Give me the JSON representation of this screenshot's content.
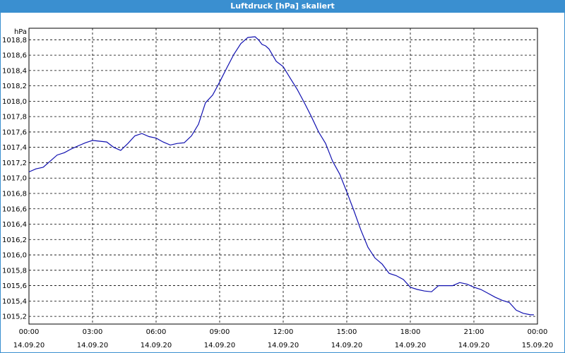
{
  "window": {
    "title": "Luftdruck [hPa] skaliert"
  },
  "chart_data": {
    "type": "line",
    "title": "Luftdruck [hPa] skaliert",
    "ylabel": "hPa",
    "xlabel": "",
    "ylim": [
      1015.1,
      1018.95
    ],
    "xlim": [
      0,
      24
    ],
    "grid": true,
    "line_color": "#1010b0",
    "y_ticks": [
      "1015,2",
      "1015,4",
      "1015,6",
      "1015,8",
      "1016,0",
      "1016,2",
      "1016,4",
      "1016,6",
      "1016,8",
      "1017,0",
      "1017,2",
      "1017,4",
      "1017,6",
      "1017,8",
      "1018,0",
      "1018,2",
      "1018,4",
      "1018,6",
      "1018,8"
    ],
    "x_ticks": [
      {
        "time": "00:00",
        "date": "14.09.20"
      },
      {
        "time": "03:00",
        "date": "14.09.20"
      },
      {
        "time": "06:00",
        "date": "14.09.20"
      },
      {
        "time": "09:00",
        "date": "14.09.20"
      },
      {
        "time": "12:00",
        "date": "14.09.20"
      },
      {
        "time": "15:00",
        "date": "14.09.20"
      },
      {
        "time": "18:00",
        "date": "14.09.20"
      },
      {
        "time": "21:00",
        "date": "14.09.20"
      },
      {
        "time": "00:00",
        "date": "15.09.20"
      }
    ],
    "series": [
      {
        "x": [
          0,
          0.33,
          0.67,
          1.0,
          1.33,
          1.67,
          2.0,
          2.33,
          2.67,
          3.0,
          3.33,
          3.67,
          4.0,
          4.33,
          4.67,
          5.0,
          5.33,
          5.67,
          6.0,
          6.33,
          6.67,
          7.0,
          7.33,
          7.67,
          8.0,
          8.33,
          8.67,
          9.0,
          9.33,
          9.67,
          10.0,
          10.33,
          10.67,
          10.83,
          11.0,
          11.17,
          11.33,
          11.67,
          12.0,
          12.33,
          12.67,
          13.0,
          13.33,
          13.67,
          14.0,
          14.33,
          14.67,
          15.0,
          15.33,
          15.67,
          16.0,
          16.33,
          16.67,
          17.0,
          17.33,
          17.67,
          18.0,
          18.33,
          18.67,
          19.0,
          19.33,
          19.67,
          20.0,
          20.33,
          20.67,
          21.0,
          21.33,
          21.67,
          22.0,
          22.33,
          22.67,
          23.0,
          23.33,
          23.67,
          23.83
        ],
        "y": [
          1017.08,
          1017.12,
          1017.14,
          1017.22,
          1017.3,
          1017.33,
          1017.38,
          1017.42,
          1017.46,
          1017.49,
          1017.48,
          1017.47,
          1017.4,
          1017.36,
          1017.45,
          1017.55,
          1017.58,
          1017.54,
          1017.52,
          1017.47,
          1017.43,
          1017.45,
          1017.46,
          1017.55,
          1017.7,
          1017.98,
          1018.08,
          1018.25,
          1018.43,
          1018.61,
          1018.75,
          1018.83,
          1018.84,
          1018.8,
          1018.74,
          1018.72,
          1018.68,
          1018.52,
          1018.45,
          1018.3,
          1018.15,
          1017.98,
          1017.8,
          1017.6,
          1017.45,
          1017.22,
          1017.05,
          1016.82,
          1016.58,
          1016.32,
          1016.1,
          1015.96,
          1015.88,
          1015.76,
          1015.73,
          1015.68,
          1015.58,
          1015.55,
          1015.53,
          1015.52,
          1015.6,
          1015.6,
          1015.6,
          1015.64,
          1015.62,
          1015.58,
          1015.55,
          1015.5,
          1015.45,
          1015.41,
          1015.38,
          1015.28,
          1015.24,
          1015.22,
          1015.22
        ]
      }
    ]
  }
}
